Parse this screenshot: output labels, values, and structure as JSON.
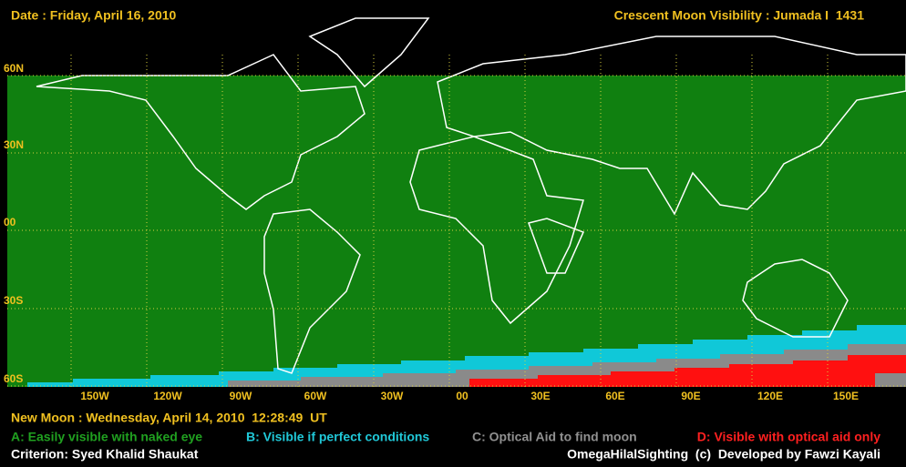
{
  "header": {
    "date": "Date : Friday, April 16, 2010",
    "title": "Crescent Moon Visibility : Jumada I  1431"
  },
  "map": {
    "lat_labels": [
      "60N",
      "30N",
      "00",
      "30S",
      "60S"
    ],
    "lon_labels": [
      "150W",
      "120W",
      "90W",
      "60W",
      "30W",
      "00",
      "30E",
      "60E",
      "90E",
      "120E",
      "150E"
    ]
  },
  "footer": {
    "new_moon": "New Moon : Wednesday, April 14, 2010  12:28:49  UT",
    "legend": [
      "A: Easily visible with naked eye",
      "B: Visible if perfect conditions",
      "C: Optical Aid to find moon",
      "D: Visible with optical aid only"
    ],
    "criterion": "Criterion: Syed Khalid Shaukat",
    "credit": "OmegaHilalSighting  (c)  Developed by Fawzi Kayali"
  }
}
